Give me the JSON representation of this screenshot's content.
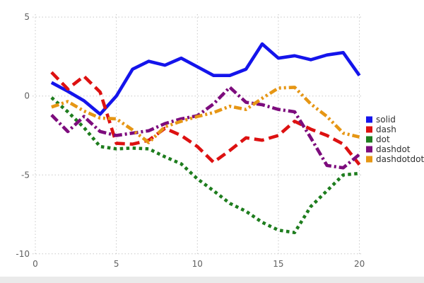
{
  "chart_data": {
    "type": "line",
    "title": "",
    "xlabel": "",
    "ylabel": "",
    "x": [
      1,
      2,
      3,
      4,
      5,
      6,
      7,
      8,
      9,
      10,
      11,
      12,
      13,
      14,
      15,
      16,
      17,
      18,
      19,
      20
    ],
    "series": [
      {
        "name": "solid",
        "color": "#1414eb",
        "style": "solid",
        "values": [
          0.85,
          0.3,
          -0.3,
          -1.15,
          0.0,
          1.7,
          2.2,
          1.95,
          2.4,
          1.85,
          1.3,
          1.3,
          1.7,
          3.3,
          2.4,
          2.55,
          2.3,
          2.6,
          2.75,
          1.3
        ]
      },
      {
        "name": "dash",
        "color": "#dd1111",
        "style": "dash",
        "values": [
          1.5,
          0.45,
          1.25,
          0.25,
          -3.0,
          -3.05,
          -2.8,
          -2.05,
          -2.5,
          -3.2,
          -4.2,
          -3.45,
          -2.65,
          -2.8,
          -2.5,
          -1.6,
          -2.1,
          -2.5,
          -3.05,
          -4.35
        ]
      },
      {
        "name": "dot",
        "color": "#1e7d1e",
        "style": "dot",
        "values": [
          -0.1,
          -1.0,
          -2.0,
          -3.2,
          -3.35,
          -3.3,
          -3.35,
          -3.85,
          -4.3,
          -5.25,
          -6.0,
          -6.8,
          -7.3,
          -8.0,
          -8.5,
          -8.65,
          -7.0,
          -6.0,
          -5.0,
          -4.9
        ]
      },
      {
        "name": "dashdot",
        "color": "#7d0c7d",
        "style": "dashdot",
        "values": [
          -1.2,
          -2.25,
          -1.3,
          -2.25,
          -2.5,
          -2.35,
          -2.2,
          -1.75,
          -1.45,
          -1.25,
          -0.5,
          0.55,
          -0.4,
          -0.55,
          -0.85,
          -1.0,
          -2.65,
          -4.4,
          -4.55,
          -3.7
        ]
      },
      {
        "name": "dashdotdot",
        "color": "#e69614",
        "style": "dashdotdot",
        "values": [
          -0.7,
          -0.35,
          -0.95,
          -1.4,
          -1.45,
          -2.15,
          -2.95,
          -1.95,
          -1.6,
          -1.3,
          -1.05,
          -0.65,
          -0.85,
          -0.15,
          0.5,
          0.55,
          -0.5,
          -1.3,
          -2.35,
          -2.6
        ]
      }
    ],
    "xticks": {
      "values": [
        0,
        5,
        10,
        15,
        20
      ],
      "labels": [
        "0",
        "5",
        "10",
        "15",
        "20"
      ]
    },
    "yticks": {
      "values": [
        5,
        0,
        -5,
        -10
      ],
      "labels": [
        "5",
        "0",
        "-5",
        "-10"
      ]
    },
    "xlim": [
      0,
      20
    ],
    "ylim": [
      -10,
      5
    ],
    "grid": "dotted",
    "legend": {
      "position": "right",
      "entries": [
        "solid",
        "dash",
        "dot",
        "dashdot",
        "dashdotdot"
      ]
    },
    "colors": {
      "tick_label": "#606060",
      "legend_label": "#303030",
      "gridline": "#c8c8c8",
      "background": "#ffffff"
    }
  }
}
